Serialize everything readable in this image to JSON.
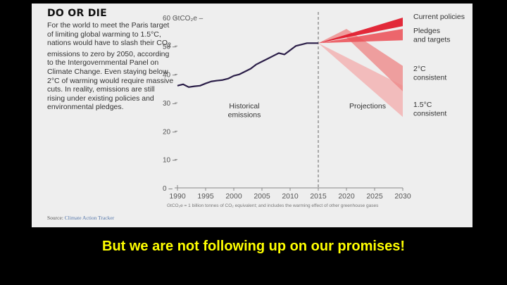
{
  "slide": {
    "caption": "But we are not following up on our promises!"
  },
  "panel": {
    "title": "DO OR DIE",
    "body_html": "For the world to meet the Paris target of limiting global warming to 1.5°C, nations would have to slash their CO<sub>2</sub> emissions to zero by 2050, according to the Intergovernmental Panel on Climate Change. Even staying below 2°C of warming would require massive cuts. In reality, emissions are still rising under existing policies and environmental pledges.",
    "source_label": "Source:",
    "source_name": "Climate Action Tracker"
  },
  "colors": {
    "historical": "#2b1e48",
    "current_policies": "#e01e2e",
    "pledges": "#eb4d55",
    "two_deg": "#ee8a8a",
    "one_five_deg": "#f2b3b3",
    "divider": "#666666",
    "axis": "#888888",
    "text": "#555555"
  },
  "chart_data": {
    "type": "area",
    "y_unit_label": "GtCO₂e",
    "ylim": [
      0,
      60
    ],
    "xlim": [
      1990,
      2030
    ],
    "y_ticks": [
      0,
      10,
      20,
      30,
      40,
      50,
      60
    ],
    "x_ticks": [
      1990,
      1995,
      2000,
      2005,
      2010,
      2015,
      2020,
      2025,
      2030
    ],
    "divider_year": 2015,
    "regions": {
      "historical": "Historical\nemissions",
      "projections": "Projections"
    },
    "footnote": "GtCO₂e = 1 billion tonnes of CO₂ equivalent; and includes the warming effect of other greenhouse gases",
    "historical": {
      "x": [
        1990,
        1991,
        1992,
        1993,
        1994,
        1995,
        1996,
        1997,
        1998,
        1999,
        2000,
        2001,
        2002,
        2003,
        2004,
        2005,
        2006,
        2007,
        2008,
        2009,
        2010,
        2011,
        2012,
        2013,
        2014,
        2015
      ],
      "y": [
        36.0,
        36.5,
        35.5,
        35.8,
        36.0,
        36.8,
        37.5,
        37.8,
        38.0,
        38.5,
        39.5,
        40.0,
        41.0,
        42.0,
        43.5,
        44.5,
        45.5,
        46.5,
        47.5,
        47.0,
        48.5,
        50.0,
        50.5,
        51.0,
        51.0,
        51.0
      ]
    },
    "scenarios": [
      {
        "name": "1.5°C\nconsistent",
        "x": [
          2015,
          2030
        ],
        "upper": [
          51,
          36
        ],
        "lower": [
          51,
          25
        ],
        "color_key": "one_five_deg"
      },
      {
        "name": "2°C\nconsistent",
        "x": [
          2015,
          2020,
          2030
        ],
        "upper": [
          51,
          56,
          43
        ],
        "lower": [
          51,
          53,
          34
        ],
        "color_key": "two_deg"
      },
      {
        "name": "Pledges\nand targets",
        "x": [
          2015,
          2030
        ],
        "upper": [
          51,
          56
        ],
        "lower": [
          51,
          52
        ],
        "color_key": "pledges"
      },
      {
        "name": "Current policies",
        "x": [
          2015,
          2030
        ],
        "upper": [
          51,
          60
        ],
        "lower": [
          51,
          57
        ],
        "color_key": "current_policies"
      }
    ]
  }
}
